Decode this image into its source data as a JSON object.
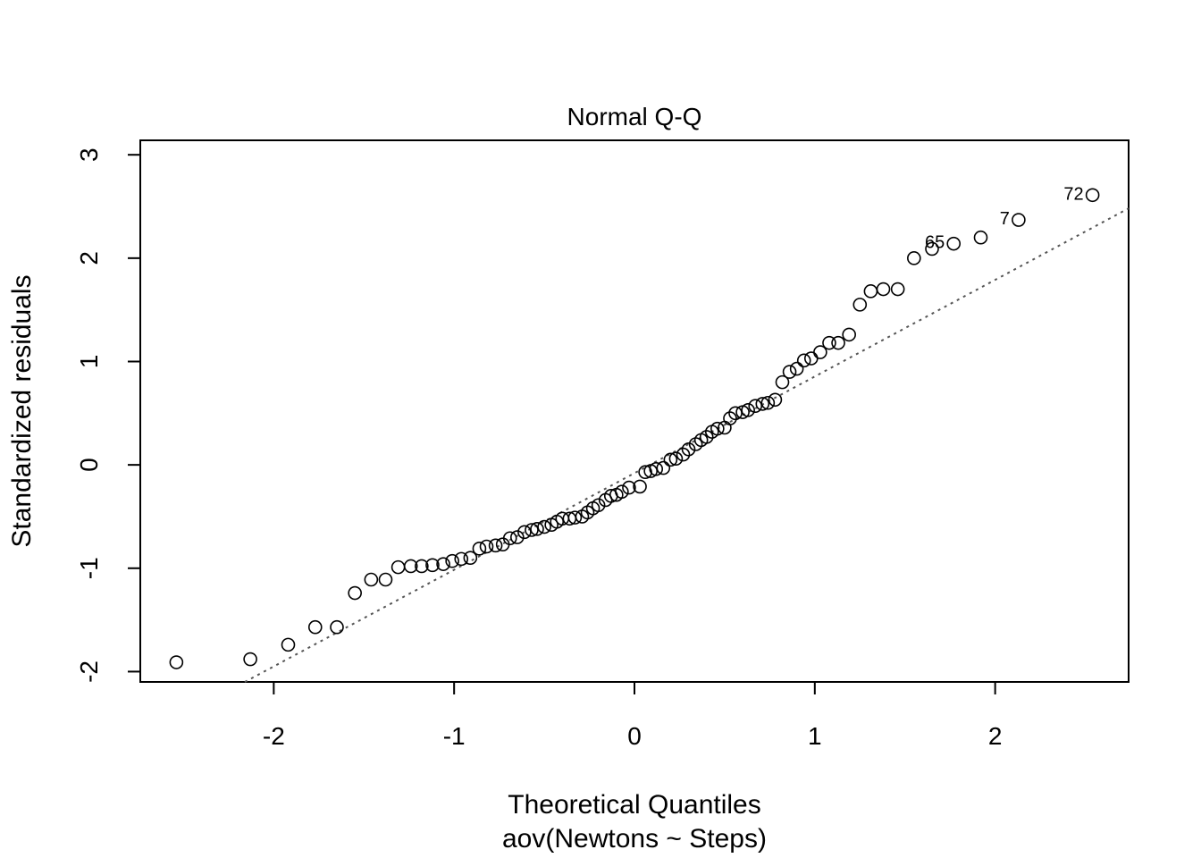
{
  "chart_data": {
    "type": "scatter",
    "title": "Normal Q-Q",
    "xlabel": "Theoretical Quantiles",
    "subtitle": "aov(Newtons ~ Steps)",
    "ylabel": "Standardized residuals",
    "xlim": [
      -2.74,
      2.74
    ],
    "ylim": [
      -2.1,
      3.14
    ],
    "xticks": [
      -2,
      -1,
      0,
      1,
      2
    ],
    "yticks": [
      -2,
      -1,
      0,
      1,
      2,
      3
    ],
    "xtick_labels": [
      "-2",
      "-1",
      "0",
      "1",
      "2"
    ],
    "ytick_labels": [
      "-2",
      "-1",
      "0",
      "1",
      "2",
      "3"
    ],
    "grid": false,
    "reference_line": {
      "style": "dotted",
      "color": "#555555",
      "slope": 0.935,
      "intercept": -0.08
    },
    "marker_color": "#000000",
    "points": [
      {
        "x": -2.54,
        "y": -1.91
      },
      {
        "x": -2.13,
        "y": -1.88
      },
      {
        "x": -1.92,
        "y": -1.74
      },
      {
        "x": -1.77,
        "y": -1.57
      },
      {
        "x": -1.65,
        "y": -1.57
      },
      {
        "x": -1.55,
        "y": -1.24
      },
      {
        "x": -1.46,
        "y": -1.11
      },
      {
        "x": -1.38,
        "y": -1.11
      },
      {
        "x": -1.31,
        "y": -0.99
      },
      {
        "x": -1.24,
        "y": -0.98
      },
      {
        "x": -1.18,
        "y": -0.98
      },
      {
        "x": -1.12,
        "y": -0.97
      },
      {
        "x": -1.06,
        "y": -0.96
      },
      {
        "x": -1.01,
        "y": -0.93
      },
      {
        "x": -0.96,
        "y": -0.91
      },
      {
        "x": -0.91,
        "y": -0.9
      },
      {
        "x": -0.86,
        "y": -0.81
      },
      {
        "x": -0.82,
        "y": -0.79
      },
      {
        "x": -0.77,
        "y": -0.78
      },
      {
        "x": -0.73,
        "y": -0.77
      },
      {
        "x": -0.69,
        "y": -0.71
      },
      {
        "x": -0.65,
        "y": -0.7
      },
      {
        "x": -0.61,
        "y": -0.65
      },
      {
        "x": -0.57,
        "y": -0.63
      },
      {
        "x": -0.54,
        "y": -0.62
      },
      {
        "x": -0.5,
        "y": -0.6
      },
      {
        "x": -0.46,
        "y": -0.58
      },
      {
        "x": -0.43,
        "y": -0.55
      },
      {
        "x": -0.4,
        "y": -0.52
      },
      {
        "x": -0.36,
        "y": -0.52
      },
      {
        "x": -0.33,
        "y": -0.51
      },
      {
        "x": -0.29,
        "y": -0.5
      },
      {
        "x": -0.26,
        "y": -0.46
      },
      {
        "x": -0.23,
        "y": -0.42
      },
      {
        "x": -0.2,
        "y": -0.39
      },
      {
        "x": -0.16,
        "y": -0.34
      },
      {
        "x": -0.13,
        "y": -0.3
      },
      {
        "x": -0.1,
        "y": -0.29
      },
      {
        "x": -0.07,
        "y": -0.26
      },
      {
        "x": -0.03,
        "y": -0.22
      },
      {
        "x": 0.03,
        "y": -0.21
      },
      {
        "x": 0.06,
        "y": -0.07
      },
      {
        "x": 0.09,
        "y": -0.06
      },
      {
        "x": 0.12,
        "y": -0.04
      },
      {
        "x": 0.16,
        "y": -0.03
      },
      {
        "x": 0.2,
        "y": 0.05
      },
      {
        "x": 0.23,
        "y": 0.06
      },
      {
        "x": 0.27,
        "y": 0.1
      },
      {
        "x": 0.3,
        "y": 0.15
      },
      {
        "x": 0.34,
        "y": 0.2
      },
      {
        "x": 0.37,
        "y": 0.24
      },
      {
        "x": 0.4,
        "y": 0.27
      },
      {
        "x": 0.43,
        "y": 0.32
      },
      {
        "x": 0.46,
        "y": 0.35
      },
      {
        "x": 0.5,
        "y": 0.36
      },
      {
        "x": 0.53,
        "y": 0.45
      },
      {
        "x": 0.56,
        "y": 0.5
      },
      {
        "x": 0.6,
        "y": 0.51
      },
      {
        "x": 0.63,
        "y": 0.53
      },
      {
        "x": 0.67,
        "y": 0.57
      },
      {
        "x": 0.71,
        "y": 0.59
      },
      {
        "x": 0.74,
        "y": 0.6
      },
      {
        "x": 0.78,
        "y": 0.63
      },
      {
        "x": 0.82,
        "y": 0.8
      },
      {
        "x": 0.86,
        "y": 0.9
      },
      {
        "x": 0.9,
        "y": 0.93
      },
      {
        "x": 0.94,
        "y": 1.01
      },
      {
        "x": 0.98,
        "y": 1.03
      },
      {
        "x": 1.03,
        "y": 1.09
      },
      {
        "x": 1.08,
        "y": 1.18
      },
      {
        "x": 1.13,
        "y": 1.18
      },
      {
        "x": 1.19,
        "y": 1.26
      },
      {
        "x": 1.25,
        "y": 1.55
      },
      {
        "x": 1.31,
        "y": 1.68
      },
      {
        "x": 1.38,
        "y": 1.7
      },
      {
        "x": 1.46,
        "y": 1.7
      },
      {
        "x": 1.55,
        "y": 2.0
      },
      {
        "x": 1.65,
        "y": 2.09
      },
      {
        "x": 1.77,
        "y": 2.14,
        "label": "65"
      },
      {
        "x": 1.92,
        "y": 2.2
      },
      {
        "x": 2.13,
        "y": 2.37,
        "label": "7"
      },
      {
        "x": 2.54,
        "y": 2.61,
        "label": "72"
      }
    ]
  }
}
